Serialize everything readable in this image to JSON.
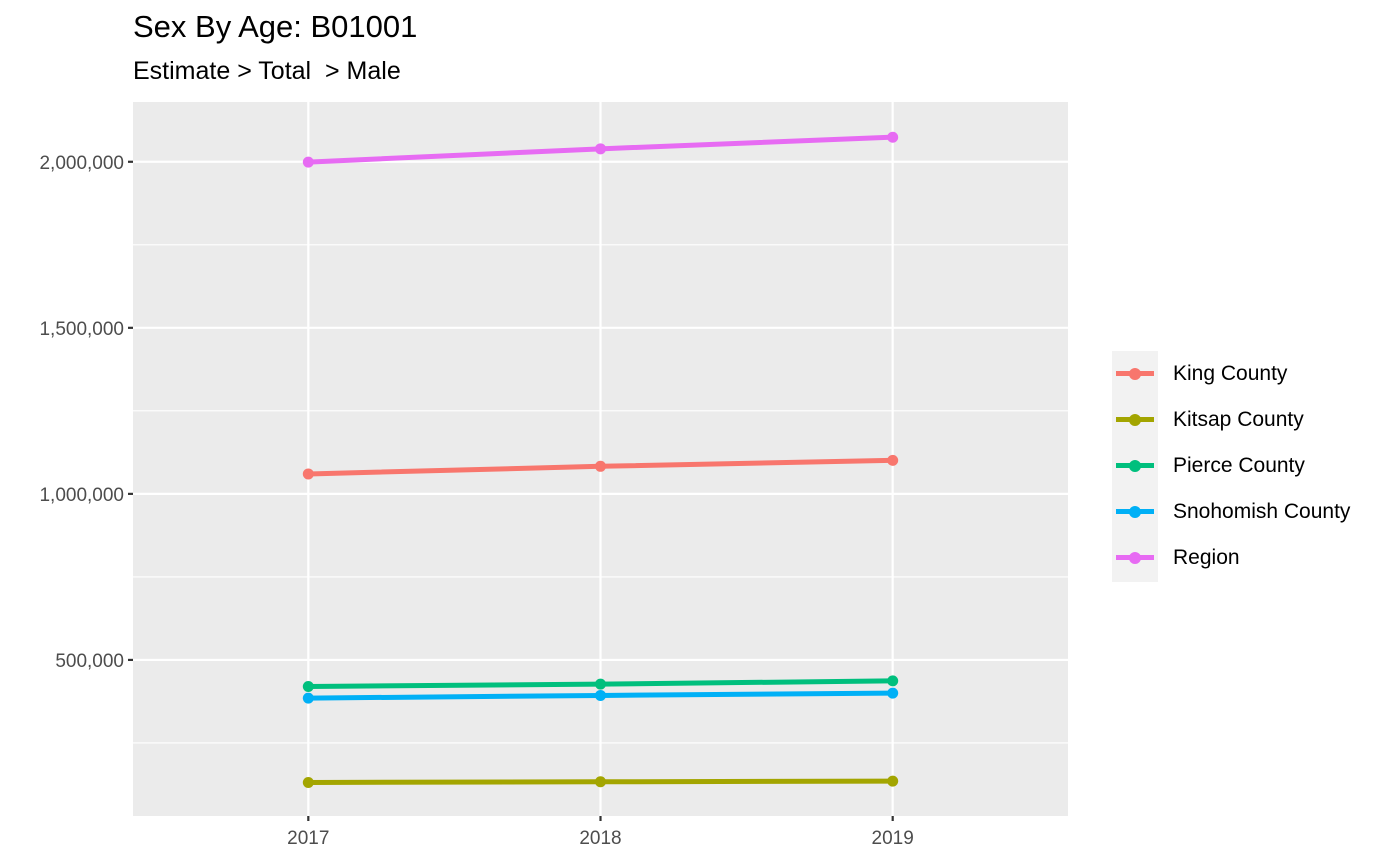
{
  "chart_data": {
    "type": "line",
    "title": "Sex By Age: B01001",
    "subtitle": "Estimate > Total  > Male",
    "xlabel": "",
    "ylabel": "",
    "x": [
      "2017",
      "2018",
      "2019"
    ],
    "xlim": [
      2016.4,
      2019.6
    ],
    "ylim": [
      30000,
      2180000
    ],
    "y_ticks": [
      500000,
      1000000,
      1500000,
      2000000
    ],
    "y_tick_labels": [
      "500,000",
      "1,000,000",
      "1,500,000",
      "2,000,000"
    ],
    "grid": true,
    "legend_position": "right",
    "panel_background": "#ebebeb",
    "series": [
      {
        "name": "King County",
        "color": "#F8766D",
        "values": [
          1060000,
          1083000,
          1101000
        ]
      },
      {
        "name": "Kitsap County",
        "color": "#A3A500",
        "values": [
          131000,
          133000,
          135000
        ]
      },
      {
        "name": "Pierce County",
        "color": "#00BF7D",
        "values": [
          420000,
          427000,
          437000
        ]
      },
      {
        "name": "Snohomish County",
        "color": "#00B0F6",
        "values": [
          385000,
          393000,
          400000
        ]
      },
      {
        "name": "Region",
        "color": "#E76BF3",
        "values": [
          1999000,
          2039000,
          2074000
        ]
      }
    ]
  }
}
